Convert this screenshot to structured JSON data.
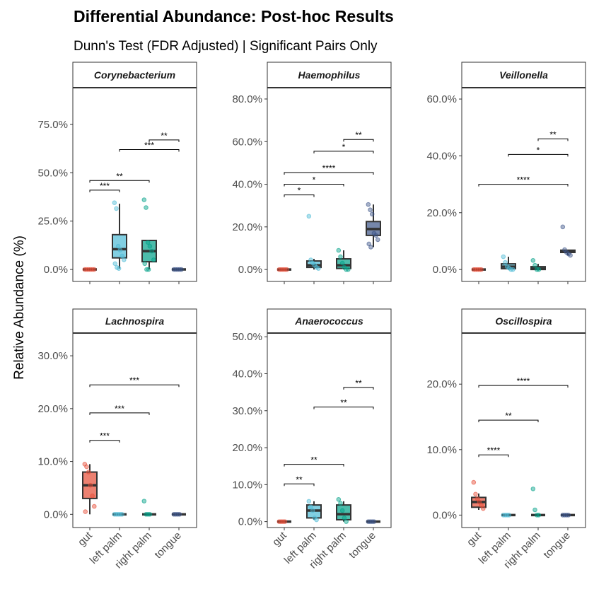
{
  "chart_data": {
    "type": "boxplot",
    "title": "Differential Abundance: Post-hoc Results",
    "subtitle": "Dunn's Test (FDR Adjusted) | Significant Pairs Only",
    "ylabel": "Relative Abundance (%)",
    "categories": [
      "gut",
      "left palm",
      "right palm",
      "tongue"
    ],
    "colors": [
      "#E64B35",
      "#4DBBD5",
      "#00A087",
      "#3C5488"
    ],
    "grid": false,
    "panels": [
      {
        "name": "Corynebacterium",
        "ylim": [
          -6.2,
          94
        ],
        "yticks": [
          0,
          25,
          50,
          75
        ],
        "ytick_labels": [
          "0.0%",
          "25.0%",
          "50.0%",
          "75.0%"
        ],
        "boxes": [
          {
            "q1": 0,
            "med": 0,
            "q3": 0,
            "lo": 0,
            "hi": 0,
            "points": [
              0,
              0,
              0,
              0,
              0,
              0
            ]
          },
          {
            "q1": 6,
            "med": 10.5,
            "q3": 18,
            "lo": 0.5,
            "hi": 34,
            "points": [
              34.5,
              31.5,
              12,
              10,
              7,
              5,
              3,
              1,
              0.5
            ]
          },
          {
            "q1": 4,
            "med": 9.5,
            "q3": 15,
            "lo": 0,
            "hi": 15,
            "points": [
              36,
              32,
              14,
              12,
              9.5,
              5,
              3,
              0,
              0
            ]
          },
          {
            "q1": 0,
            "med": 0,
            "q3": 0,
            "lo": 0,
            "hi": 0,
            "points": [
              0,
              0,
              0,
              0,
              0
            ]
          }
        ],
        "brackets": [
          {
            "from": "gut",
            "to": "left palm",
            "y": 41,
            "label": "***"
          },
          {
            "from": "gut",
            "to": "right palm",
            "y": 46,
            "label": "**"
          },
          {
            "from": "left palm",
            "to": "tongue",
            "y": 62,
            "label": "***"
          },
          {
            "from": "right palm",
            "to": "tongue",
            "y": 67,
            "label": "**"
          }
        ]
      },
      {
        "name": "Haemophilus",
        "ylim": [
          -5.6,
          85.3
        ],
        "yticks": [
          0,
          20,
          40,
          60,
          80
        ],
        "ytick_labels": [
          "0.0%",
          "20.0%",
          "40.0%",
          "60.0%",
          "80.0%"
        ],
        "boxes": [
          {
            "q1": 0,
            "med": 0,
            "q3": 0,
            "lo": 0,
            "hi": 0,
            "points": [
              0,
              0,
              0,
              0,
              0
            ]
          },
          {
            "q1": 1,
            "med": 2,
            "q3": 4,
            "lo": 0,
            "hi": 5,
            "points": [
              25,
              4.5,
              3,
              2,
              1,
              0.5
            ]
          },
          {
            "q1": 0.5,
            "med": 2,
            "q3": 5,
            "lo": 0,
            "hi": 9,
            "points": [
              9,
              6,
              3,
              1,
              0,
              0
            ]
          },
          {
            "q1": 16,
            "med": 19,
            "q3": 22.5,
            "lo": 10.5,
            "hi": 30.5,
            "points": [
              30.5,
              28,
              26,
              17,
              16,
              14,
              12,
              10.5
            ]
          }
        ],
        "brackets": [
          {
            "from": "gut",
            "to": "left palm",
            "y": 35,
            "label": "*"
          },
          {
            "from": "gut",
            "to": "right palm",
            "y": 40,
            "label": "*"
          },
          {
            "from": "gut",
            "to": "tongue",
            "y": 45.5,
            "label": "****"
          },
          {
            "from": "left palm",
            "to": "tongue",
            "y": 55.5,
            "label": "*"
          },
          {
            "from": "right palm",
            "to": "tongue",
            "y": 61,
            "label": "**"
          }
        ]
      },
      {
        "name": "Veillonella",
        "ylim": [
          -4.2,
          64
        ],
        "yticks": [
          0,
          20,
          40,
          60
        ],
        "ytick_labels": [
          "0.0%",
          "20.0%",
          "40.0%",
          "60.0%"
        ],
        "boxes": [
          {
            "q1": 0,
            "med": 0,
            "q3": 0,
            "lo": 0,
            "hi": 0,
            "points": [
              0,
              0,
              0,
              0,
              0
            ]
          },
          {
            "q1": 0.3,
            "med": 1,
            "q3": 2,
            "lo": 0,
            "hi": 4.5,
            "points": [
              4.5,
              2.5,
              1,
              0.5,
              0,
              0
            ]
          },
          {
            "q1": 0,
            "med": 0.3,
            "q3": 1,
            "lo": 0,
            "hi": 2,
            "points": [
              3.2,
              1.5,
              0,
              0
            ]
          },
          {
            "q1": 6,
            "med": 6.5,
            "q3": 6.8,
            "lo": 5,
            "hi": 7,
            "points": [
              15,
              7,
              6,
              5.5,
              5
            ]
          }
        ],
        "brackets": [
          {
            "from": "gut",
            "to": "tongue",
            "y": 30,
            "label": "****"
          },
          {
            "from": "left palm",
            "to": "tongue",
            "y": 40.5,
            "label": "*"
          },
          {
            "from": "right palm",
            "to": "tongue",
            "y": 46,
            "label": "**"
          }
        ]
      },
      {
        "name": "Lachnospira",
        "ylim": [
          -2.5,
          34.3
        ],
        "yticks": [
          0,
          10,
          20,
          30
        ],
        "ytick_labels": [
          "0.0%",
          "10.0%",
          "20.0%",
          "30.0%"
        ],
        "boxes": [
          {
            "q1": 3,
            "med": 5.5,
            "q3": 8,
            "lo": 0,
            "hi": 9.5,
            "points": [
              9.5,
              9,
              8,
              5.5,
              3.5,
              1.5,
              0.5
            ]
          },
          {
            "q1": 0,
            "med": 0,
            "q3": 0,
            "lo": 0,
            "hi": 0,
            "points": [
              0,
              0,
              0,
              0,
              0
            ]
          },
          {
            "q1": 0,
            "med": 0,
            "q3": 0,
            "lo": 0,
            "hi": 0,
            "points": [
              2.5,
              0,
              0,
              0
            ]
          },
          {
            "q1": 0,
            "med": 0,
            "q3": 0,
            "lo": 0,
            "hi": 0,
            "points": [
              0,
              0,
              0,
              0
            ]
          }
        ],
        "brackets": [
          {
            "from": "gut",
            "to": "left palm",
            "y": 14,
            "label": "***"
          },
          {
            "from": "gut",
            "to": "right palm",
            "y": 19.2,
            "label": "***"
          },
          {
            "from": "gut",
            "to": "tongue",
            "y": 24.5,
            "label": "***"
          }
        ]
      },
      {
        "name": "Anaerococcus",
        "ylim": [
          -1.6,
          51
        ],
        "yticks": [
          0,
          10,
          20,
          30,
          40,
          50
        ],
        "ytick_labels": [
          "0.0%",
          "10.0%",
          "20.0%",
          "30.0%",
          "40.0%",
          "50.0%"
        ],
        "boxes": [
          {
            "q1": 0,
            "med": 0,
            "q3": 0,
            "lo": 0,
            "hi": 0,
            "points": [
              0,
              0,
              0,
              0
            ]
          },
          {
            "q1": 1,
            "med": 3,
            "q3": 4.5,
            "lo": 0.5,
            "hi": 5.5,
            "points": [
              5.5,
              4,
              3,
              1,
              0.5
            ]
          },
          {
            "q1": 0.5,
            "med": 2,
            "q3": 4.5,
            "lo": 0,
            "hi": 5.5,
            "points": [
              6,
              5,
              3,
              1,
              0
            ]
          },
          {
            "q1": 0,
            "med": 0,
            "q3": 0,
            "lo": 0,
            "hi": 0,
            "points": [
              0,
              0,
              0,
              0
            ]
          }
        ],
        "brackets": [
          {
            "from": "gut",
            "to": "left palm",
            "y": 10.2,
            "label": "**"
          },
          {
            "from": "gut",
            "to": "right palm",
            "y": 15.5,
            "label": "**"
          },
          {
            "from": "left palm",
            "to": "tongue",
            "y": 31,
            "label": "**"
          },
          {
            "from": "right palm",
            "to": "tongue",
            "y": 36.3,
            "label": "**"
          }
        ]
      },
      {
        "name": "Oscillospira",
        "ylim": [
          -1.9,
          27.8
        ],
        "yticks": [
          0,
          10,
          20
        ],
        "ytick_labels": [
          "0.0%",
          "10.0%",
          "20.0%"
        ],
        "boxes": [
          {
            "q1": 1.2,
            "med": 2,
            "q3": 2.7,
            "lo": 0.8,
            "hi": 3.3,
            "points": [
              5,
              3.2,
              2.5,
              2,
              1.5,
              1
            ]
          },
          {
            "q1": 0,
            "med": 0,
            "q3": 0,
            "lo": 0,
            "hi": 0,
            "points": [
              0,
              0,
              0,
              0
            ]
          },
          {
            "q1": 0,
            "med": 0,
            "q3": 0,
            "lo": 0,
            "hi": 0,
            "points": [
              4,
              0.8,
              0,
              0
            ]
          },
          {
            "q1": 0,
            "med": 0,
            "q3": 0,
            "lo": 0,
            "hi": 0,
            "points": [
              0,
              0,
              0,
              0
            ]
          }
        ],
        "brackets": [
          {
            "from": "gut",
            "to": "left palm",
            "y": 9.2,
            "label": "****"
          },
          {
            "from": "gut",
            "to": "right palm",
            "y": 14.5,
            "label": "**"
          },
          {
            "from": "gut",
            "to": "tongue",
            "y": 19.8,
            "label": "****"
          }
        ]
      }
    ]
  }
}
